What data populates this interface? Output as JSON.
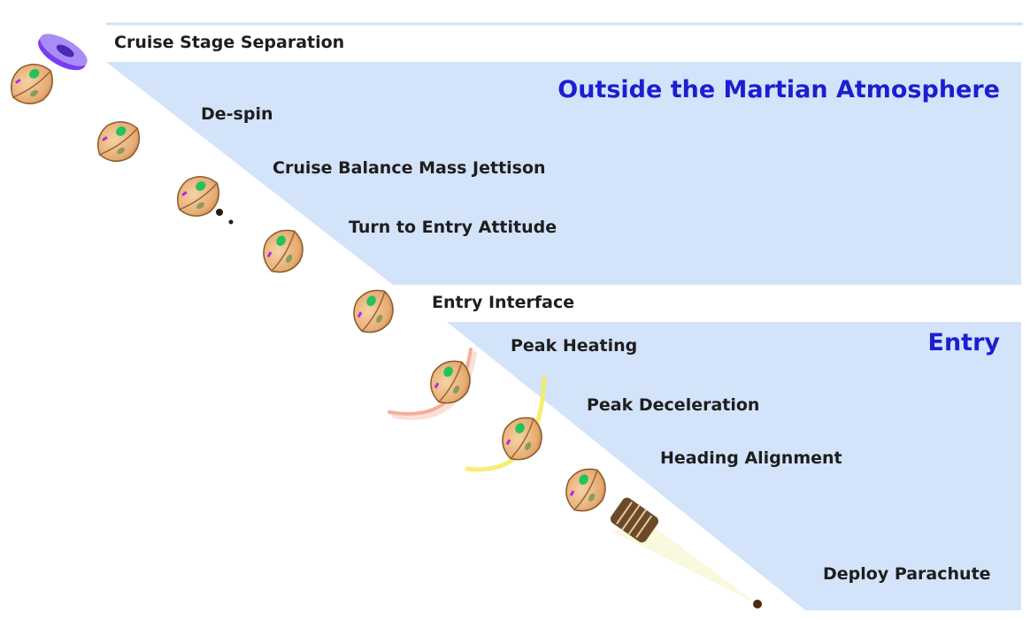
{
  "colors": {
    "panel": "#d3e3fa",
    "panel_border": "#c7dbf8",
    "heading": "#1d1ecf",
    "label": "#1e1e1e",
    "capsule": "#e8b47c",
    "capsule_edge": "#8a5a2a",
    "capsule_patch": "#22c35a",
    "capsule_mark": "#b02adf",
    "cruise_stage": "#7a3cf0",
    "heating_glow": "#f08a72",
    "decel_glow": "#f3ec5a",
    "parachute": "#6b4a2a",
    "parachute_beam": "#f4f0b8"
  },
  "headings": {
    "outside": "Outside the Martian Atmosphere",
    "entry": "Entry"
  },
  "events": [
    {
      "id": "cruise-stage-separation",
      "label": "Cruise Stage Separation"
    },
    {
      "id": "de-spin",
      "label": "De-spin"
    },
    {
      "id": "cruise-balance-mass-jettison",
      "label": "Cruise Balance Mass Jettison"
    },
    {
      "id": "turn-to-entry-attitude",
      "label": "Turn to Entry Attitude"
    },
    {
      "id": "entry-interface",
      "label": "Entry Interface"
    },
    {
      "id": "peak-heating",
      "label": "Peak Heating"
    },
    {
      "id": "peak-deceleration",
      "label": "Peak Deceleration"
    },
    {
      "id": "heading-alignment",
      "label": "Heading Alignment"
    },
    {
      "id": "deploy-parachute",
      "label": "Deploy Parachute"
    }
  ]
}
